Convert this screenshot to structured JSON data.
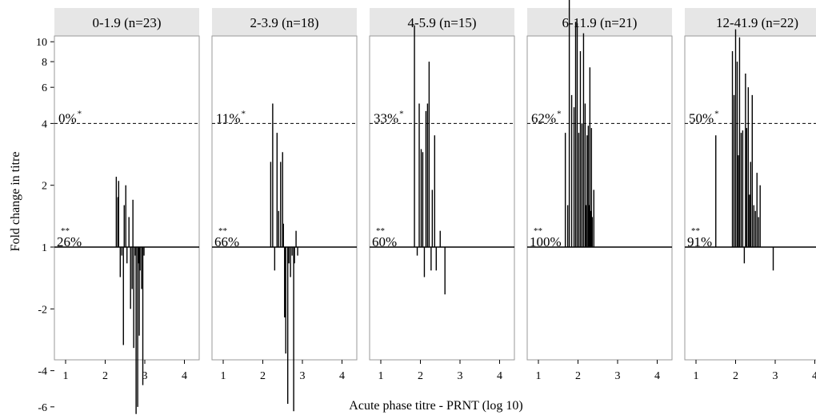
{
  "chart_data": {
    "type": "bar",
    "xlabel": "Acute phase titre - PRNT (log 10)",
    "ylabel": "Fold change in titre",
    "xlim": [
      0.7,
      4.2
    ],
    "x_ticks": [
      "1",
      "2",
      "3",
      "4"
    ],
    "y_ticks": [
      "10",
      "8",
      "6",
      "4",
      "2",
      "1",
      "-2",
      "-4",
      "-6"
    ],
    "reference_lines": [
      {
        "y": 4,
        "style": "dashed"
      },
      {
        "y": 1,
        "style": "solid"
      }
    ],
    "panels": [
      {
        "strip": "0-1.9 (n=23)",
        "above_label": "0%",
        "above_mark": "*",
        "below_label": "26%",
        "below_mark": "**",
        "bars": [
          {
            "x": 2.28,
            "y": 2.2
          },
          {
            "x": 2.32,
            "y": 1.75
          },
          {
            "x": 2.34,
            "y": 2.1
          },
          {
            "x": 2.38,
            "y": -1.4
          },
          {
            "x": 2.42,
            "y": -1.1
          },
          {
            "x": 2.46,
            "y": -3.0
          },
          {
            "x": 2.48,
            "y": 1.6
          },
          {
            "x": 2.52,
            "y": 2.0
          },
          {
            "x": 2.55,
            "y": -1.2
          },
          {
            "x": 2.6,
            "y": 1.4
          },
          {
            "x": 2.64,
            "y": -2.0
          },
          {
            "x": 2.68,
            "y": -1.6
          },
          {
            "x": 2.7,
            "y": 1.7
          },
          {
            "x": 2.72,
            "y": -3.1
          },
          {
            "x": 2.76,
            "y": -1.1
          },
          {
            "x": 2.78,
            "y": -6.5
          },
          {
            "x": 2.82,
            "y": -6.0
          },
          {
            "x": 2.84,
            "y": -1.2
          },
          {
            "x": 2.86,
            "y": -2.7
          },
          {
            "x": 2.88,
            "y": -1.3
          },
          {
            "x": 2.92,
            "y": -1.6
          },
          {
            "x": 2.95,
            "y": -4.7
          },
          {
            "x": 2.98,
            "y": -1.1
          }
        ]
      },
      {
        "strip": "2-3.9 (n=18)",
        "above_label": "11%",
        "above_mark": "*",
        "below_label": "66%",
        "below_mark": "**",
        "bars": [
          {
            "x": 2.2,
            "y": 2.6
          },
          {
            "x": 2.25,
            "y": 5.0
          },
          {
            "x": 2.3,
            "y": -1.3
          },
          {
            "x": 2.36,
            "y": 3.6
          },
          {
            "x": 2.4,
            "y": 1.5
          },
          {
            "x": 2.45,
            "y": 2.6
          },
          {
            "x": 2.5,
            "y": 2.9
          },
          {
            "x": 2.52,
            "y": 1.3
          },
          {
            "x": 2.55,
            "y": -2.2
          },
          {
            "x": 2.58,
            "y": -3.3
          },
          {
            "x": 2.63,
            "y": -5.8
          },
          {
            "x": 2.66,
            "y": -1.2
          },
          {
            "x": 2.7,
            "y": -1.4
          },
          {
            "x": 2.74,
            "y": -1.1
          },
          {
            "x": 2.78,
            "y": -6.3
          },
          {
            "x": 2.8,
            "y": -1.2
          },
          {
            "x": 2.84,
            "y": 1.2
          },
          {
            "x": 2.88,
            "y": -1.1
          }
        ]
      },
      {
        "strip": "4-5.9 (n=15)",
        "above_label": "33%",
        "above_mark": "*",
        "below_label": "60%",
        "below_mark": "**",
        "bars": [
          {
            "x": 1.85,
            "y": 12.0
          },
          {
            "x": 1.92,
            "y": -1.1
          },
          {
            "x": 1.97,
            "y": 5.0
          },
          {
            "x": 2.02,
            "y": 3.0
          },
          {
            "x": 2.06,
            "y": 2.9
          },
          {
            "x": 2.1,
            "y": -1.4
          },
          {
            "x": 2.14,
            "y": 4.6
          },
          {
            "x": 2.18,
            "y": 5.0
          },
          {
            "x": 2.22,
            "y": 8.0
          },
          {
            "x": 2.27,
            "y": -1.3
          },
          {
            "x": 2.3,
            "y": 1.9
          },
          {
            "x": 2.36,
            "y": 3.5
          },
          {
            "x": 2.4,
            "y": -1.3
          },
          {
            "x": 2.5,
            "y": 1.2
          },
          {
            "x": 2.62,
            "y": -1.7
          }
        ]
      },
      {
        "strip": "6-11.9 (n=21)",
        "above_label": "62%",
        "above_mark": "*",
        "below_label": "100%",
        "below_mark": "**",
        "bars": [
          {
            "x": 1.68,
            "y": 3.6
          },
          {
            "x": 1.74,
            "y": 1.6
          },
          {
            "x": 1.78,
            "y": 18.0
          },
          {
            "x": 1.84,
            "y": 5.5
          },
          {
            "x": 1.9,
            "y": 4.8
          },
          {
            "x": 1.94,
            "y": 12.5
          },
          {
            "x": 1.98,
            "y": 12.3
          },
          {
            "x": 2.02,
            "y": 3.6
          },
          {
            "x": 2.06,
            "y": 9.0
          },
          {
            "x": 2.1,
            "y": 4.0
          },
          {
            "x": 2.14,
            "y": 11.0
          },
          {
            "x": 2.18,
            "y": 5.0
          },
          {
            "x": 2.2,
            "y": 1.6
          },
          {
            "x": 2.23,
            "y": 3.5
          },
          {
            "x": 2.26,
            "y": 3.9
          },
          {
            "x": 2.28,
            "y": 1.6
          },
          {
            "x": 2.3,
            "y": 7.5
          },
          {
            "x": 2.32,
            "y": 1.5
          },
          {
            "x": 2.34,
            "y": 3.8
          },
          {
            "x": 2.36,
            "y": 1.4
          },
          {
            "x": 2.4,
            "y": 1.9
          }
        ]
      },
      {
        "strip": "12-41.9 (n=22)",
        "above_label": "50%",
        "above_mark": "*",
        "below_label": "91%",
        "below_mark": "**",
        "bars": [
          {
            "x": 1.5,
            "y": 3.5
          },
          {
            "x": 1.92,
            "y": 9.0
          },
          {
            "x": 1.96,
            "y": 5.5
          },
          {
            "x": 2.0,
            "y": 11.5
          },
          {
            "x": 2.04,
            "y": 8.0
          },
          {
            "x": 2.07,
            "y": 2.8
          },
          {
            "x": 2.1,
            "y": 10.5
          },
          {
            "x": 2.14,
            "y": 3.6
          },
          {
            "x": 2.18,
            "y": 3.7
          },
          {
            "x": 2.22,
            "y": -1.2
          },
          {
            "x": 2.25,
            "y": 7.0
          },
          {
            "x": 2.28,
            "y": 3.8
          },
          {
            "x": 2.32,
            "y": 6.0
          },
          {
            "x": 2.35,
            "y": 1.8
          },
          {
            "x": 2.38,
            "y": 2.6
          },
          {
            "x": 2.42,
            "y": 5.5
          },
          {
            "x": 2.46,
            "y": 1.6
          },
          {
            "x": 2.5,
            "y": 1.5
          },
          {
            "x": 2.54,
            "y": 2.3
          },
          {
            "x": 2.58,
            "y": 1.4
          },
          {
            "x": 2.62,
            "y": 2.0
          },
          {
            "x": 2.95,
            "y": -1.3
          }
        ]
      }
    ]
  }
}
